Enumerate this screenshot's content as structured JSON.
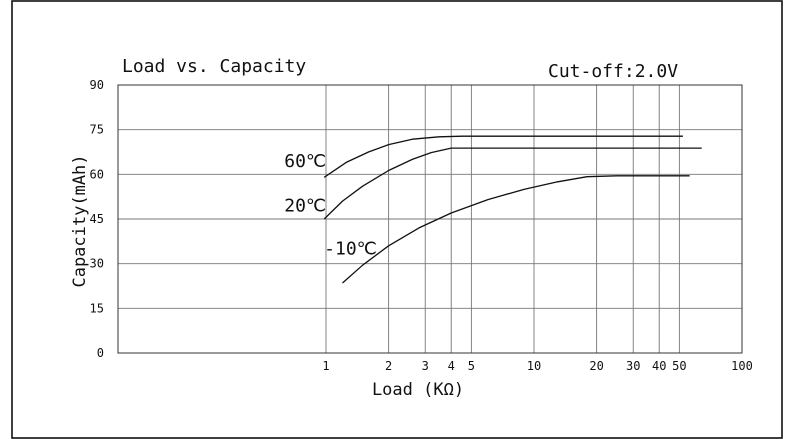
{
  "chart_data": {
    "type": "line",
    "title": "Load vs. Capacity",
    "subtitle": "Cut-off:2.0V",
    "xlabel": "Load (KΩ)",
    "ylabel": "Capacity(mAh)",
    "x_scale": "log",
    "xlim": [
      0.1,
      100
    ],
    "ylim": [
      0,
      90
    ],
    "grid": true,
    "x_ticks": [
      {
        "value": 1,
        "label": "1"
      },
      {
        "value": 2,
        "label": "2"
      },
      {
        "value": 3,
        "label": "3"
      },
      {
        "value": 4,
        "label": "4"
      },
      {
        "value": 5,
        "label": "5"
      },
      {
        "value": 10,
        "label": "10"
      },
      {
        "value": 20,
        "label": "20"
      },
      {
        "value": 30,
        "label": "30"
      },
      {
        "value": 40,
        "label": "40"
      },
      {
        "value": 50,
        "label": "50"
      },
      {
        "value": 100,
        "label": "100"
      }
    ],
    "y_ticks": [
      {
        "value": 0,
        "label": "0"
      },
      {
        "value": 15,
        "label": "15"
      },
      {
        "value": 30,
        "label": "30"
      },
      {
        "value": 45,
        "label": "45"
      },
      {
        "value": 60,
        "label": "60"
      },
      {
        "value": 75,
        "label": "75"
      },
      {
        "value": 90,
        "label": "90"
      }
    ],
    "series": [
      {
        "name": "60℃",
        "color": "#111111",
        "x": [
          0.98,
          1.25,
          1.6,
          2.0,
          2.6,
          3.5,
          4.5,
          7,
          12,
          20,
          35,
          52
        ],
        "y": [
          59,
          64,
          67.5,
          70,
          71.8,
          72.6,
          72.8,
          72.8,
          72.8,
          72.8,
          72.8,
          72.8
        ]
      },
      {
        "name": "20℃",
        "color": "#111111",
        "x": [
          0.98,
          1.2,
          1.5,
          2.0,
          2.6,
          3.2,
          4.0,
          6,
          10,
          20,
          40,
          64
        ],
        "y": [
          45,
          51,
          56,
          61.3,
          65,
          67.3,
          68.8,
          68.8,
          68.8,
          68.8,
          68.8,
          68.8
        ]
      },
      {
        "name": "-10℃",
        "color": "#111111",
        "x": [
          1.2,
          1.5,
          2.0,
          2.8,
          4.0,
          6.0,
          9.0,
          13,
          18,
          25,
          40,
          56
        ],
        "y": [
          23.5,
          29.5,
          36,
          42,
          47,
          51.5,
          55,
          57.5,
          59.2,
          59.5,
          59.5,
          59.5
        ]
      }
    ],
    "annotations": [
      {
        "text": "60℃",
        "x": 0.63,
        "y": 62.5
      },
      {
        "text": "20℃",
        "x": 0.63,
        "y": 47.5
      },
      {
        "text": "-10℃",
        "x": 0.98,
        "y": 33
      }
    ]
  }
}
